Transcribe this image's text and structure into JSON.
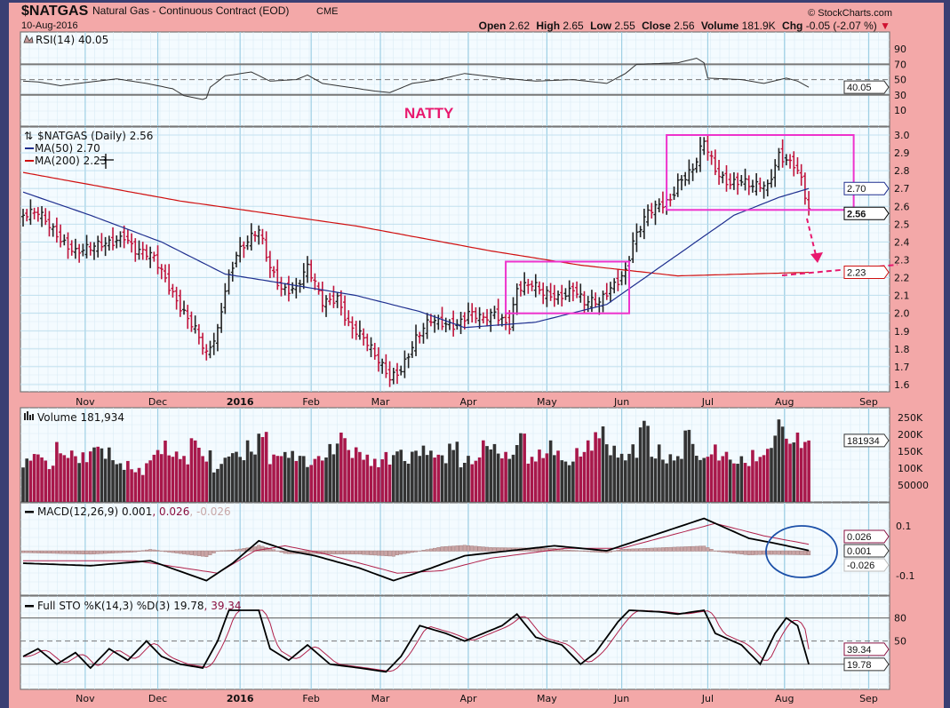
{
  "header": {
    "symbol": "$NATGAS",
    "name": "Natural Gas - Continuous Contract (EOD)",
    "exchange": "CME",
    "date": "10-Aug-2016",
    "watermark": "© StockCharts.com",
    "open_label": "Open",
    "open": "2.62",
    "high_label": "High",
    "high": "2.65",
    "low_label": "Low",
    "low": "2.55",
    "close_label": "Close",
    "close": "2.56",
    "volume_label": "Volume",
    "volume": "181.9K",
    "chg_label": "Chg",
    "chg": "-0.05 (-2.07 %)"
  },
  "annotation": {
    "text": "NATTY"
  },
  "colors": {
    "up": "#222222",
    "down": "#c0143c",
    "ma50": "#1f2f8f",
    "ma200": "#d01010",
    "box": "#ee33cc",
    "annotation": "#e8186e",
    "volUp": "#333333",
    "volDown": "#a8174a",
    "bg": "#f3a8a8",
    "plot": "#f4fbff",
    "grid": "#b9dcec"
  },
  "chart_data": [
    {
      "type": "line",
      "title": "RSI(14) 40.05",
      "panel": "rsi",
      "legend": "RSI(14) 40.05",
      "ticks": [
        90,
        70,
        50,
        30,
        10
      ],
      "overbought": 70,
      "oversold": 30,
      "last": "40.05",
      "points": [
        [
          0,
          48
        ],
        [
          4,
          47
        ],
        [
          10,
          42
        ],
        [
          18,
          47
        ],
        [
          25,
          51
        ],
        [
          33,
          45
        ],
        [
          40,
          38
        ],
        [
          43,
          29
        ],
        [
          48,
          24
        ],
        [
          49,
          26
        ],
        [
          50,
          40
        ],
        [
          54,
          55
        ],
        [
          57,
          57
        ],
        [
          61,
          60
        ],
        [
          66,
          48
        ],
        [
          73,
          50
        ],
        [
          76,
          56
        ],
        [
          80,
          45
        ],
        [
          87,
          40
        ],
        [
          94,
          35
        ],
        [
          98,
          33
        ],
        [
          104,
          45
        ],
        [
          111,
          50
        ],
        [
          118,
          58
        ],
        [
          128,
          52
        ],
        [
          137,
          48
        ],
        [
          147,
          50
        ],
        [
          156,
          45
        ],
        [
          161,
          58
        ],
        [
          164,
          70
        ],
        [
          175,
          72
        ],
        [
          180,
          78
        ],
        [
          182,
          72
        ],
        [
          183,
          52
        ],
        [
          192,
          50
        ],
        [
          198,
          45
        ],
        [
          204,
          52
        ],
        [
          207,
          48
        ],
        [
          210,
          40.05
        ]
      ]
    },
    {
      "type": "ohlc",
      "title": "$NATGAS (Daily) 2.56",
      "panel": "price",
      "legend": "$NATGAS (Daily) 2.56",
      "ma50_label": "MA(50) 2.70",
      "ma200_label": "MA(200) 2.23",
      "ylim": [
        1.6,
        3.0
      ],
      "ticks": [
        "3.0",
        "2.9",
        "2.8",
        "2.7",
        "2.6",
        "2.5",
        "2.4",
        "2.3",
        "2.2",
        "2.1",
        "2.0",
        "1.9",
        "1.8",
        "1.7",
        "1.6"
      ],
      "markers": [
        {
          "value": 2.7,
          "label": "2.70"
        },
        {
          "value": 2.56,
          "label": "2.56"
        },
        {
          "value": 2.23,
          "label": "2.23"
        }
      ],
      "closes": [
        [
          0,
          2.55
        ],
        [
          4,
          2.55
        ],
        [
          9,
          2.45
        ],
        [
          14,
          2.35
        ],
        [
          18,
          2.35
        ],
        [
          23,
          2.4
        ],
        [
          27,
          2.45
        ],
        [
          30,
          2.35
        ],
        [
          35,
          2.3
        ],
        [
          38,
          2.2
        ],
        [
          42,
          2.05
        ],
        [
          46,
          1.9
        ],
        [
          49,
          1.75
        ],
        [
          52,
          1.9
        ],
        [
          54,
          2.15
        ],
        [
          57,
          2.35
        ],
        [
          60,
          2.4
        ],
        [
          63,
          2.45
        ],
        [
          66,
          2.25
        ],
        [
          69,
          2.15
        ],
        [
          73,
          2.15
        ],
        [
          76,
          2.25
        ],
        [
          80,
          2.05
        ],
        [
          84,
          2.1
        ],
        [
          87,
          1.95
        ],
        [
          91,
          1.85
        ],
        [
          94,
          1.75
        ],
        [
          98,
          1.65
        ],
        [
          101,
          1.7
        ],
        [
          105,
          1.85
        ],
        [
          109,
          1.95
        ],
        [
          112,
          1.95
        ],
        [
          116,
          1.95
        ],
        [
          119,
          2.0
        ],
        [
          123,
          1.95
        ],
        [
          126,
          2.0
        ],
        [
          130,
          1.95
        ],
        [
          132,
          2.15
        ],
        [
          136,
          2.15
        ],
        [
          139,
          2.1
        ],
        [
          143,
          2.1
        ],
        [
          147,
          2.15
        ],
        [
          150,
          2.05
        ],
        [
          154,
          2.05
        ],
        [
          157,
          2.15
        ],
        [
          161,
          2.25
        ],
        [
          163,
          2.4
        ],
        [
          167,
          2.55
        ],
        [
          170,
          2.6
        ],
        [
          173,
          2.65
        ],
        [
          175,
          2.75
        ],
        [
          179,
          2.8
        ],
        [
          182,
          2.95
        ],
        [
          185,
          2.8
        ],
        [
          188,
          2.75
        ],
        [
          192,
          2.75
        ],
        [
          195,
          2.7
        ],
        [
          199,
          2.7
        ],
        [
          202,
          2.9
        ],
        [
          206,
          2.85
        ],
        [
          208,
          2.75
        ],
        [
          210,
          2.56
        ]
      ],
      "ma50": [
        [
          0,
          2.68
        ],
        [
          18,
          2.55
        ],
        [
          37,
          2.4
        ],
        [
          54,
          2.22
        ],
        [
          66,
          2.18
        ],
        [
          89,
          2.1
        ],
        [
          106,
          2.01
        ],
        [
          118,
          1.92
        ],
        [
          137,
          1.95
        ],
        [
          156,
          2.05
        ],
        [
          173,
          2.3
        ],
        [
          190,
          2.55
        ],
        [
          202,
          2.65
        ],
        [
          210,
          2.7
        ]
      ],
      "ma200": [
        [
          0,
          2.79
        ],
        [
          42,
          2.63
        ],
        [
          89,
          2.49
        ],
        [
          125,
          2.35
        ],
        [
          149,
          2.27
        ],
        [
          175,
          2.21
        ],
        [
          210,
          2.23
        ]
      ],
      "boxes": [
        {
          "from": 129,
          "to": 162,
          "high": 2.29,
          "low": 2.0
        },
        {
          "from": 172,
          "to": 222,
          "high": 3.0,
          "low": 2.58
        }
      ]
    },
    {
      "type": "bar",
      "title": "Volume 181,934",
      "panel": "volume",
      "legend": "Volume 181,934",
      "ticks": [
        "250K",
        "200K",
        "150K",
        "100K",
        "50000"
      ],
      "tick_values": [
        250000,
        200000,
        150000,
        100000,
        50000
      ],
      "last": "181934",
      "values_every_3_days": [
        120000,
        150000,
        110000,
        160000,
        140000,
        130000,
        165000,
        150000,
        120000,
        110000,
        90000,
        130000,
        160000,
        150000,
        130000,
        175000,
        140000,
        100000,
        150000,
        140000,
        160000,
        200000,
        130000,
        150000,
        140000,
        120000,
        130000,
        150000,
        200000,
        150000,
        140000,
        120000,
        130000,
        150000,
        130000,
        160000,
        150000,
        130000,
        170000,
        120000,
        130000,
        180000,
        150000,
        140000,
        190000,
        130000,
        150000,
        160000,
        120000,
        140000,
        170000,
        210000,
        160000,
        140000,
        150000,
        230000,
        150000,
        130000,
        140000,
        200000,
        130000,
        150000,
        140000,
        130000,
        120000,
        140000,
        150000,
        230000,
        190000,
        181934
      ]
    },
    {
      "type": "line",
      "title": "MACD(12,26,9)",
      "panel": "macd",
      "legend_name": "MACD(12,26,9)",
      "macd_value": "0.001",
      "signal_value": "0.026",
      "hist_value": "-0.026",
      "ticks": [
        "0.1",
        "-0.1"
      ],
      "tick_values": [
        0.1,
        -0.1
      ],
      "markers": [
        "0.026",
        "0.001",
        "-0.026"
      ],
      "macd": [
        [
          0,
          -0.05
        ],
        [
          18,
          -0.06
        ],
        [
          34,
          -0.04
        ],
        [
          49,
          -0.12
        ],
        [
          56,
          -0.05
        ],
        [
          63,
          0.04
        ],
        [
          71,
          0.0
        ],
        [
          78,
          -0.02
        ],
        [
          90,
          -0.07
        ],
        [
          99,
          -0.12
        ],
        [
          109,
          -0.07
        ],
        [
          118,
          -0.02
        ],
        [
          130,
          0.0
        ],
        [
          142,
          0.02
        ],
        [
          156,
          0.0
        ],
        [
          166,
          0.05
        ],
        [
          182,
          0.13
        ],
        [
          194,
          0.05
        ],
        [
          201,
          0.03
        ],
        [
          210,
          0.001
        ]
      ],
      "signal": [
        [
          0,
          -0.04
        ],
        [
          30,
          -0.04
        ],
        [
          52,
          -0.09
        ],
        [
          62,
          0.0
        ],
        [
          70,
          0.02
        ],
        [
          80,
          -0.01
        ],
        [
          100,
          -0.09
        ],
        [
          112,
          -0.08
        ],
        [
          125,
          -0.03
        ],
        [
          145,
          0.01
        ],
        [
          160,
          0.01
        ],
        [
          175,
          0.07
        ],
        [
          185,
          0.11
        ],
        [
          198,
          0.06
        ],
        [
          210,
          0.026
        ]
      ]
    },
    {
      "type": "line",
      "title": "Full STO %K(14,3) %D(3)",
      "panel": "sto",
      "legend_name": "Full STO %K(14,3) %D(3)",
      "k_value": "19.78",
      "d_value": "39.34",
      "ticks": [
        "80",
        "50"
      ],
      "tick_values": [
        80,
        50
      ],
      "k": [
        [
          0,
          30
        ],
        [
          4,
          40
        ],
        [
          9,
          20
        ],
        [
          14,
          35
        ],
        [
          18,
          15
        ],
        [
          23,
          40
        ],
        [
          28,
          25
        ],
        [
          33,
          50
        ],
        [
          37,
          30
        ],
        [
          42,
          20
        ],
        [
          48,
          15
        ],
        [
          52,
          50
        ],
        [
          55,
          90
        ],
        [
          63,
          90
        ],
        [
          66,
          40
        ],
        [
          71,
          25
        ],
        [
          76,
          45
        ],
        [
          82,
          20
        ],
        [
          90,
          15
        ],
        [
          97,
          10
        ],
        [
          101,
          30
        ],
        [
          106,
          70
        ],
        [
          113,
          60
        ],
        [
          118,
          50
        ],
        [
          128,
          70
        ],
        [
          132,
          85
        ],
        [
          137,
          55
        ],
        [
          144,
          45
        ],
        [
          149,
          20
        ],
        [
          153,
          35
        ],
        [
          159,
          75
        ],
        [
          162,
          90
        ],
        [
          170,
          88
        ],
        [
          175,
          85
        ],
        [
          182,
          90
        ],
        [
          185,
          60
        ],
        [
          192,
          45
        ],
        [
          197,
          20
        ],
        [
          201,
          60
        ],
        [
          204,
          80
        ],
        [
          207,
          70
        ],
        [
          210,
          19.78
        ]
      ]
    }
  ],
  "x_axis": {
    "labels": [
      [
        "Nov",
        16.6
      ],
      [
        "Dec",
        36
      ],
      [
        "2016",
        58
      ],
      [
        "Feb",
        77
      ],
      [
        "Mar",
        95.5
      ],
      [
        "Apr",
        119
      ],
      [
        "May",
        140
      ],
      [
        "Jun",
        160
      ],
      [
        "Jul",
        183
      ],
      [
        "Aug",
        203.5
      ],
      [
        "Sep",
        226
      ]
    ]
  }
}
